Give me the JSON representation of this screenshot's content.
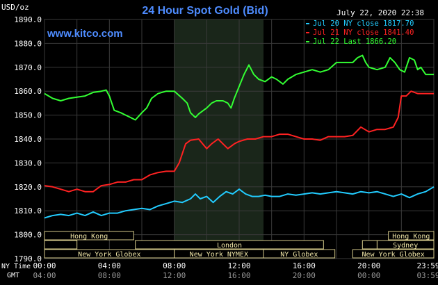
{
  "chart_data": {
    "type": "line",
    "title": "24 Hour Spot Gold (Bid)",
    "watermark": "www.kitco.com",
    "timestamp": "July 22, 2020 22:38",
    "ylabel": "USD/oz",
    "ylim": [
      1790,
      1890
    ],
    "y_ticks": [
      "1890.0",
      "1880.0",
      "1870.0",
      "1860.0",
      "1850.0",
      "1840.0",
      "1830.0",
      "1820.0",
      "1810.0",
      "1800.0",
      "1790.0"
    ],
    "x_tick_labels_ny": [
      "00:00",
      "04:00",
      "08:00",
      "12:00",
      "16:00",
      "20:00",
      "23:59"
    ],
    "x_tick_labels_gmt": [
      "04:00",
      "08:00",
      "12:00",
      "16:00",
      "20:00",
      "00:00",
      "03:59"
    ],
    "x_row_labels": [
      "NY Time",
      "GMT"
    ],
    "grid": true,
    "legend_placement": "top-right",
    "shaded_session": [
      8.0,
      13.5
    ],
    "series": [
      {
        "name": "Jul 20 NY close 1817.70",
        "color": "#22ccff",
        "points": [
          [
            0,
            1807
          ],
          [
            0.5,
            1808
          ],
          [
            1,
            1808.5
          ],
          [
            1.5,
            1808
          ],
          [
            2,
            1809
          ],
          [
            2.5,
            1808
          ],
          [
            3,
            1809.5
          ],
          [
            3.5,
            1808
          ],
          [
            4,
            1809
          ],
          [
            4.5,
            1809
          ],
          [
            5,
            1810
          ],
          [
            5.5,
            1810.5
          ],
          [
            6,
            1811
          ],
          [
            6.5,
            1810.5
          ],
          [
            7,
            1812
          ],
          [
            7.5,
            1813
          ],
          [
            8,
            1814
          ],
          [
            8.5,
            1813.5
          ],
          [
            9,
            1815
          ],
          [
            9.3,
            1817
          ],
          [
            9.6,
            1815
          ],
          [
            10,
            1816
          ],
          [
            10.4,
            1813.5
          ],
          [
            10.8,
            1816
          ],
          [
            11.2,
            1818
          ],
          [
            11.6,
            1817
          ],
          [
            12,
            1819
          ],
          [
            12.4,
            1817
          ],
          [
            12.8,
            1816
          ],
          [
            13.2,
            1816
          ],
          [
            13.6,
            1816.5
          ],
          [
            14,
            1816
          ],
          [
            14.5,
            1816
          ],
          [
            15,
            1817
          ],
          [
            15.5,
            1816.5
          ],
          [
            16,
            1817
          ],
          [
            16.5,
            1817.5
          ],
          [
            17,
            1817
          ],
          [
            17.5,
            1817.5
          ],
          [
            18,
            1818
          ],
          [
            18.5,
            1817.5
          ],
          [
            19,
            1817
          ],
          [
            19.5,
            1818
          ],
          [
            20,
            1817.5
          ],
          [
            20.5,
            1818
          ],
          [
            21,
            1817
          ],
          [
            21.5,
            1816
          ],
          [
            22,
            1817
          ],
          [
            22.5,
            1815.5
          ],
          [
            23,
            1817
          ],
          [
            23.5,
            1818
          ],
          [
            24,
            1820
          ]
        ]
      },
      {
        "name": "Jul 21 NY close 1841.40",
        "color": "#ff2222",
        "points": [
          [
            0,
            1820.5
          ],
          [
            0.5,
            1820
          ],
          [
            1,
            1819
          ],
          [
            1.5,
            1818
          ],
          [
            2,
            1819
          ],
          [
            2.5,
            1818
          ],
          [
            3,
            1818
          ],
          [
            3.5,
            1820.5
          ],
          [
            4,
            1821
          ],
          [
            4.5,
            1822
          ],
          [
            5,
            1822
          ],
          [
            5.5,
            1823
          ],
          [
            6,
            1823
          ],
          [
            6.5,
            1825
          ],
          [
            7,
            1826
          ],
          [
            7.5,
            1826.5
          ],
          [
            8,
            1826.5
          ],
          [
            8.3,
            1830
          ],
          [
            8.7,
            1838
          ],
          [
            9,
            1839.5
          ],
          [
            9.5,
            1840
          ],
          [
            10,
            1836
          ],
          [
            10.3,
            1838
          ],
          [
            10.7,
            1840
          ],
          [
            11,
            1838
          ],
          [
            11.3,
            1836
          ],
          [
            11.7,
            1838
          ],
          [
            12,
            1839
          ],
          [
            12.5,
            1840
          ],
          [
            13,
            1840
          ],
          [
            13.5,
            1841
          ],
          [
            14,
            1841
          ],
          [
            14.5,
            1842
          ],
          [
            15,
            1842
          ],
          [
            15.5,
            1841
          ],
          [
            16,
            1840
          ],
          [
            16.5,
            1840
          ],
          [
            17,
            1839.5
          ],
          [
            17.5,
            1841
          ],
          [
            18,
            1841
          ],
          [
            18.5,
            1841
          ],
          [
            19,
            1841.5
          ],
          [
            19.5,
            1845
          ],
          [
            20,
            1843
          ],
          [
            20.5,
            1844
          ],
          [
            21,
            1844
          ],
          [
            21.5,
            1845
          ],
          [
            21.8,
            1849
          ],
          [
            22,
            1858
          ],
          [
            22.3,
            1858
          ],
          [
            22.6,
            1860
          ],
          [
            23,
            1859
          ],
          [
            23.5,
            1859
          ],
          [
            24,
            1859
          ]
        ]
      },
      {
        "name": "Jul 22 Last 1866.20",
        "color": "#33ff33",
        "points": [
          [
            0,
            1859
          ],
          [
            0.5,
            1857
          ],
          [
            1,
            1856
          ],
          [
            1.5,
            1857
          ],
          [
            2,
            1857.5
          ],
          [
            2.5,
            1858
          ],
          [
            3,
            1859.5
          ],
          [
            3.5,
            1860
          ],
          [
            3.8,
            1860.5
          ],
          [
            4,
            1858
          ],
          [
            4.3,
            1852
          ],
          [
            4.7,
            1851
          ],
          [
            5,
            1850
          ],
          [
            5.3,
            1849
          ],
          [
            5.6,
            1848
          ],
          [
            6,
            1851
          ],
          [
            6.3,
            1853
          ],
          [
            6.6,
            1857
          ],
          [
            7,
            1859
          ],
          [
            7.5,
            1860
          ],
          [
            8,
            1860
          ],
          [
            8.5,
            1857
          ],
          [
            8.8,
            1855
          ],
          [
            9,
            1851
          ],
          [
            9.3,
            1849
          ],
          [
            9.5,
            1850.5
          ],
          [
            9.8,
            1852
          ],
          [
            10,
            1853
          ],
          [
            10.3,
            1855
          ],
          [
            10.6,
            1856
          ],
          [
            11,
            1856
          ],
          [
            11.3,
            1855
          ],
          [
            11.5,
            1853
          ],
          [
            11.7,
            1857
          ],
          [
            12,
            1862
          ],
          [
            12.3,
            1867
          ],
          [
            12.6,
            1871
          ],
          [
            12.9,
            1867
          ],
          [
            13.2,
            1865
          ],
          [
            13.6,
            1864
          ],
          [
            14,
            1866
          ],
          [
            14.3,
            1865
          ],
          [
            14.7,
            1863
          ],
          [
            15,
            1865
          ],
          [
            15.5,
            1867
          ],
          [
            16,
            1868
          ],
          [
            16.5,
            1869
          ],
          [
            17,
            1868
          ],
          [
            17.5,
            1869
          ],
          [
            18,
            1872
          ],
          [
            18.5,
            1872
          ],
          [
            19,
            1872
          ],
          [
            19.3,
            1874
          ],
          [
            19.6,
            1875
          ],
          [
            19.8,
            1872
          ],
          [
            20,
            1870
          ],
          [
            20.5,
            1869
          ],
          [
            21,
            1870
          ],
          [
            21.3,
            1874
          ],
          [
            21.6,
            1872
          ],
          [
            21.9,
            1869
          ],
          [
            22.2,
            1868
          ],
          [
            22.5,
            1874
          ],
          [
            22.8,
            1873
          ],
          [
            23,
            1869
          ],
          [
            23.2,
            1870
          ],
          [
            23.5,
            1867
          ],
          [
            23.8,
            1867
          ],
          [
            24,
            1867
          ]
        ]
      }
    ],
    "sessions": [
      {
        "label": "Hong Kong",
        "row": 0,
        "start": 0,
        "end": 5.5
      },
      {
        "label": "",
        "row": 1,
        "start": 0,
        "end": 2.0
      },
      {
        "label": "London",
        "row": 1,
        "start": 5.6,
        "end": 17.2
      },
      {
        "label": "New York Globex",
        "row": 2,
        "start": 0,
        "end": 8.0
      },
      {
        "label": "New York NYMEX",
        "row": 2,
        "start": 8.0,
        "end": 13.5
      },
      {
        "label": "NY Globex",
        "row": 2,
        "start": 13.5,
        "end": 17.9
      },
      {
        "label": "Hong Kong",
        "row": 0,
        "start": 21.2,
        "end": 24
      },
      {
        "label": "Sydney",
        "row": 1,
        "start": 20.5,
        "end": 24
      },
      {
        "label": "",
        "row": 1,
        "start": 19.6,
        "end": 20.5
      },
      {
        "label": "New York Globex",
        "row": 2,
        "start": 19.0,
        "end": 24
      }
    ]
  }
}
